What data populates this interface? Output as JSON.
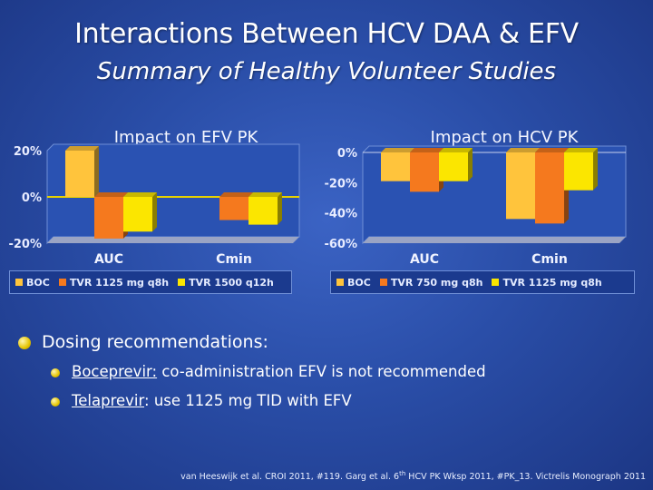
{
  "slide": {
    "title": "Interactions Between HCV DAA & EFV",
    "subtitle": "Summary of Healthy Volunteer Studies"
  },
  "chart_data": [
    {
      "type": "bar",
      "title": "Impact on EFV PK",
      "categories": [
        "AUC",
        "Cmin"
      ],
      "ylim": [
        -20,
        20
      ],
      "yticks": [
        "20%",
        "0%",
        "-20%"
      ],
      "series": [
        {
          "name": "BOC",
          "values": [
            20,
            null
          ]
        },
        {
          "name": "TVR 1125 mg q8h",
          "values": [
            -18,
            -10
          ]
        },
        {
          "name": "TVR 1500 q12h",
          "values": [
            -15,
            -12
          ]
        }
      ],
      "legend_position": "bottom"
    },
    {
      "type": "bar",
      "title": "Impact on HCV PK",
      "categories": [
        "AUC",
        "Cmin"
      ],
      "ylim": [
        -60,
        0
      ],
      "yticks": [
        "0%",
        "-20%",
        "-40%",
        "-60%"
      ],
      "series": [
        {
          "name": "BOC",
          "values": [
            -19,
            -44
          ]
        },
        {
          "name": "TVR 750 mg q8h",
          "values": [
            -26,
            -47
          ]
        },
        {
          "name": "TVR 1125 mg q8h",
          "values": [
            -19,
            -25
          ]
        }
      ],
      "legend_position": "bottom"
    }
  ],
  "colors": {
    "boc": "#ffc43c",
    "tvr_a": "#f5791e",
    "tvr_b": "#fbe600",
    "zero_line": "#e6d200",
    "bullet": "#e5c400"
  },
  "content": {
    "bullet_main": "Dosing recommendations:",
    "sub_bullets": [
      {
        "drug": "Boceprevir:",
        "text": " co-administration EFV is not recommended"
      },
      {
        "drug": "Telaprevir",
        "text": ": use 1125 mg TID with EFV"
      }
    ]
  },
  "footer": {
    "part1": "van Heeswijk et al. CROI 2011, #119. Garg et al. 6",
    "sup": "th",
    "part2": " HCV PK Wksp 2011, #PK_13. Victrelis Monograph 2011"
  }
}
